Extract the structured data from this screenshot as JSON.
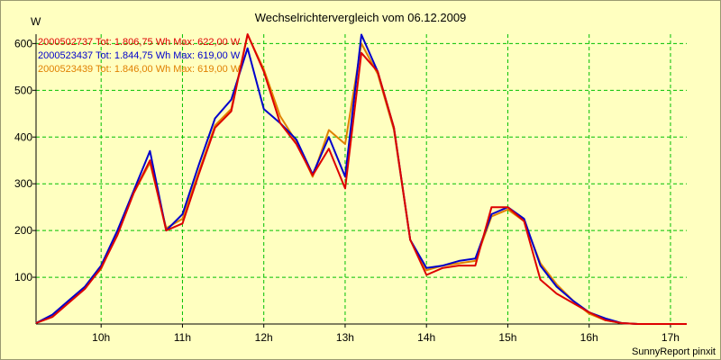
{
  "chart_data": {
    "type": "line",
    "title": "Wechselrichtervergleich vom 06.12.2009",
    "ylabel": "W",
    "xlabel": "",
    "ylim": [
      0,
      620
    ],
    "xlim": [
      9.2,
      17.2
    ],
    "yticks": [
      100,
      200,
      300,
      400,
      500,
      600
    ],
    "xticks": [
      {
        "value": 10,
        "label": "10h"
      },
      {
        "value": 11,
        "label": "11h"
      },
      {
        "value": 12,
        "label": "12h"
      },
      {
        "value": 13,
        "label": "13h"
      },
      {
        "value": 14,
        "label": "14h"
      },
      {
        "value": 15,
        "label": "15h"
      },
      {
        "value": 16,
        "label": "16h"
      },
      {
        "value": 17,
        "label": "17h"
      }
    ],
    "grid": true,
    "legend_position": "top-left",
    "x": [
      9.2,
      9.4,
      9.6,
      9.8,
      10.0,
      10.2,
      10.4,
      10.6,
      10.8,
      11.0,
      11.2,
      11.4,
      11.6,
      11.8,
      12.0,
      12.2,
      12.4,
      12.6,
      12.8,
      13.0,
      13.2,
      13.4,
      13.6,
      13.8,
      14.0,
      14.2,
      14.4,
      14.6,
      14.8,
      15.0,
      15.2,
      15.4,
      15.6,
      15.8,
      16.0,
      16.2,
      16.4,
      16.6,
      16.8,
      17.0,
      17.2
    ],
    "series": [
      {
        "name": "2000502737",
        "legend": "2000502737 Tot: 1.806,75 Wh Max: 622,00 W",
        "color": "#dd0000",
        "values": [
          2,
          15,
          45,
          75,
          120,
          190,
          280,
          350,
          200,
          215,
          320,
          420,
          455,
          620,
          540,
          430,
          385,
          318,
          375,
          290,
          580,
          540,
          420,
          180,
          105,
          120,
          125,
          125,
          250,
          250,
          220,
          95,
          65,
          45,
          25,
          8,
          2,
          0,
          0,
          0,
          0
        ]
      },
      {
        "name": "2000523437",
        "legend": "2000523437 Tot: 1.844,75 Wh Max: 619,00 W",
        "color": "#0000cc",
        "values": [
          2,
          20,
          50,
          80,
          125,
          200,
          285,
          370,
          200,
          235,
          340,
          440,
          480,
          590,
          460,
          430,
          395,
          320,
          400,
          315,
          619,
          540,
          420,
          180,
          120,
          125,
          135,
          140,
          235,
          250,
          225,
          125,
          80,
          50,
          25,
          12,
          2,
          0,
          0,
          0,
          0
        ]
      },
      {
        "name": "2000523439",
        "legend": "2000523439 Tot: 1.846,00 Wh Max: 619,00 W",
        "color": "#e08000",
        "values": [
          2,
          18,
          47,
          78,
          118,
          195,
          280,
          345,
          205,
          225,
          325,
          425,
          460,
          619,
          545,
          445,
          390,
          315,
          415,
          385,
          600,
          535,
          415,
          180,
          115,
          125,
          130,
          135,
          230,
          245,
          220,
          130,
          85,
          50,
          22,
          8,
          2,
          0,
          0,
          0,
          0
        ]
      }
    ]
  },
  "footer": {
    "credit": "SunnyReport pinxit"
  }
}
